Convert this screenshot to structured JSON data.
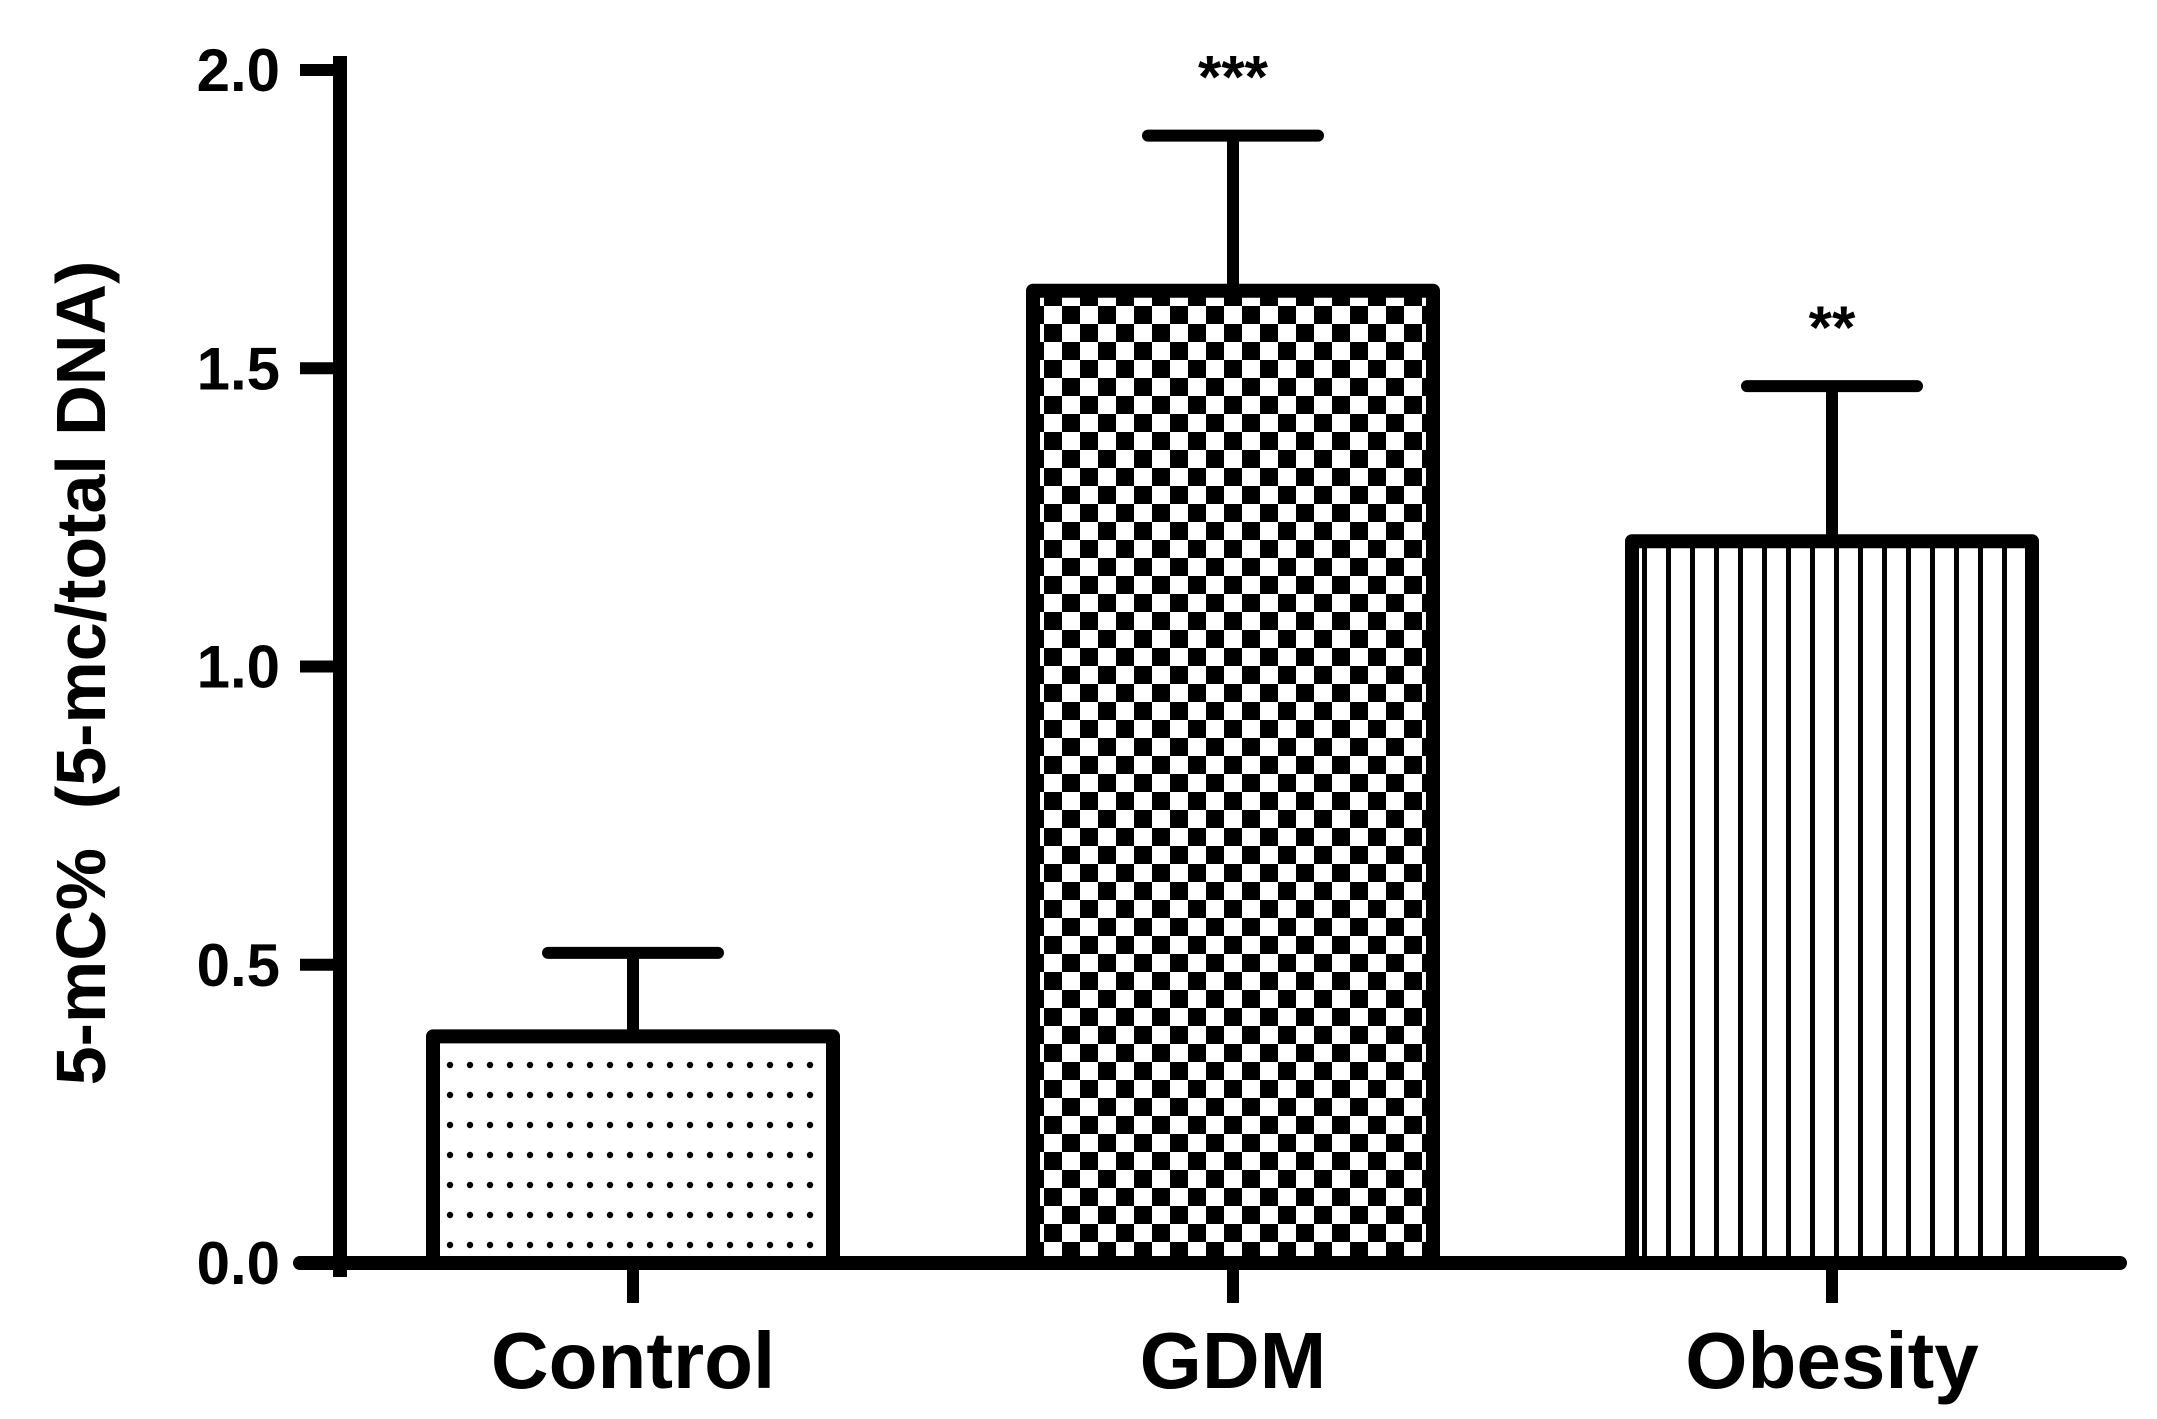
{
  "chart_data": {
    "type": "bar",
    "ylabel": "5-mC%  (5-mc/total DNA)",
    "xlabel": "",
    "title": "",
    "ylim": [
      0,
      2.0
    ],
    "yticks": [
      "0.0",
      "0.5",
      "1.0",
      "1.5",
      "2.0"
    ],
    "categories": [
      "Control",
      "GDM",
      "Obesity"
    ],
    "values": [
      0.38,
      1.63,
      1.21
    ],
    "errors": [
      0.14,
      0.26,
      0.26
    ],
    "annotations": [
      "",
      "***",
      "**"
    ],
    "patterns": [
      "dots",
      "checker",
      "vertical-lines"
    ],
    "grid": false,
    "legend": "none"
  }
}
